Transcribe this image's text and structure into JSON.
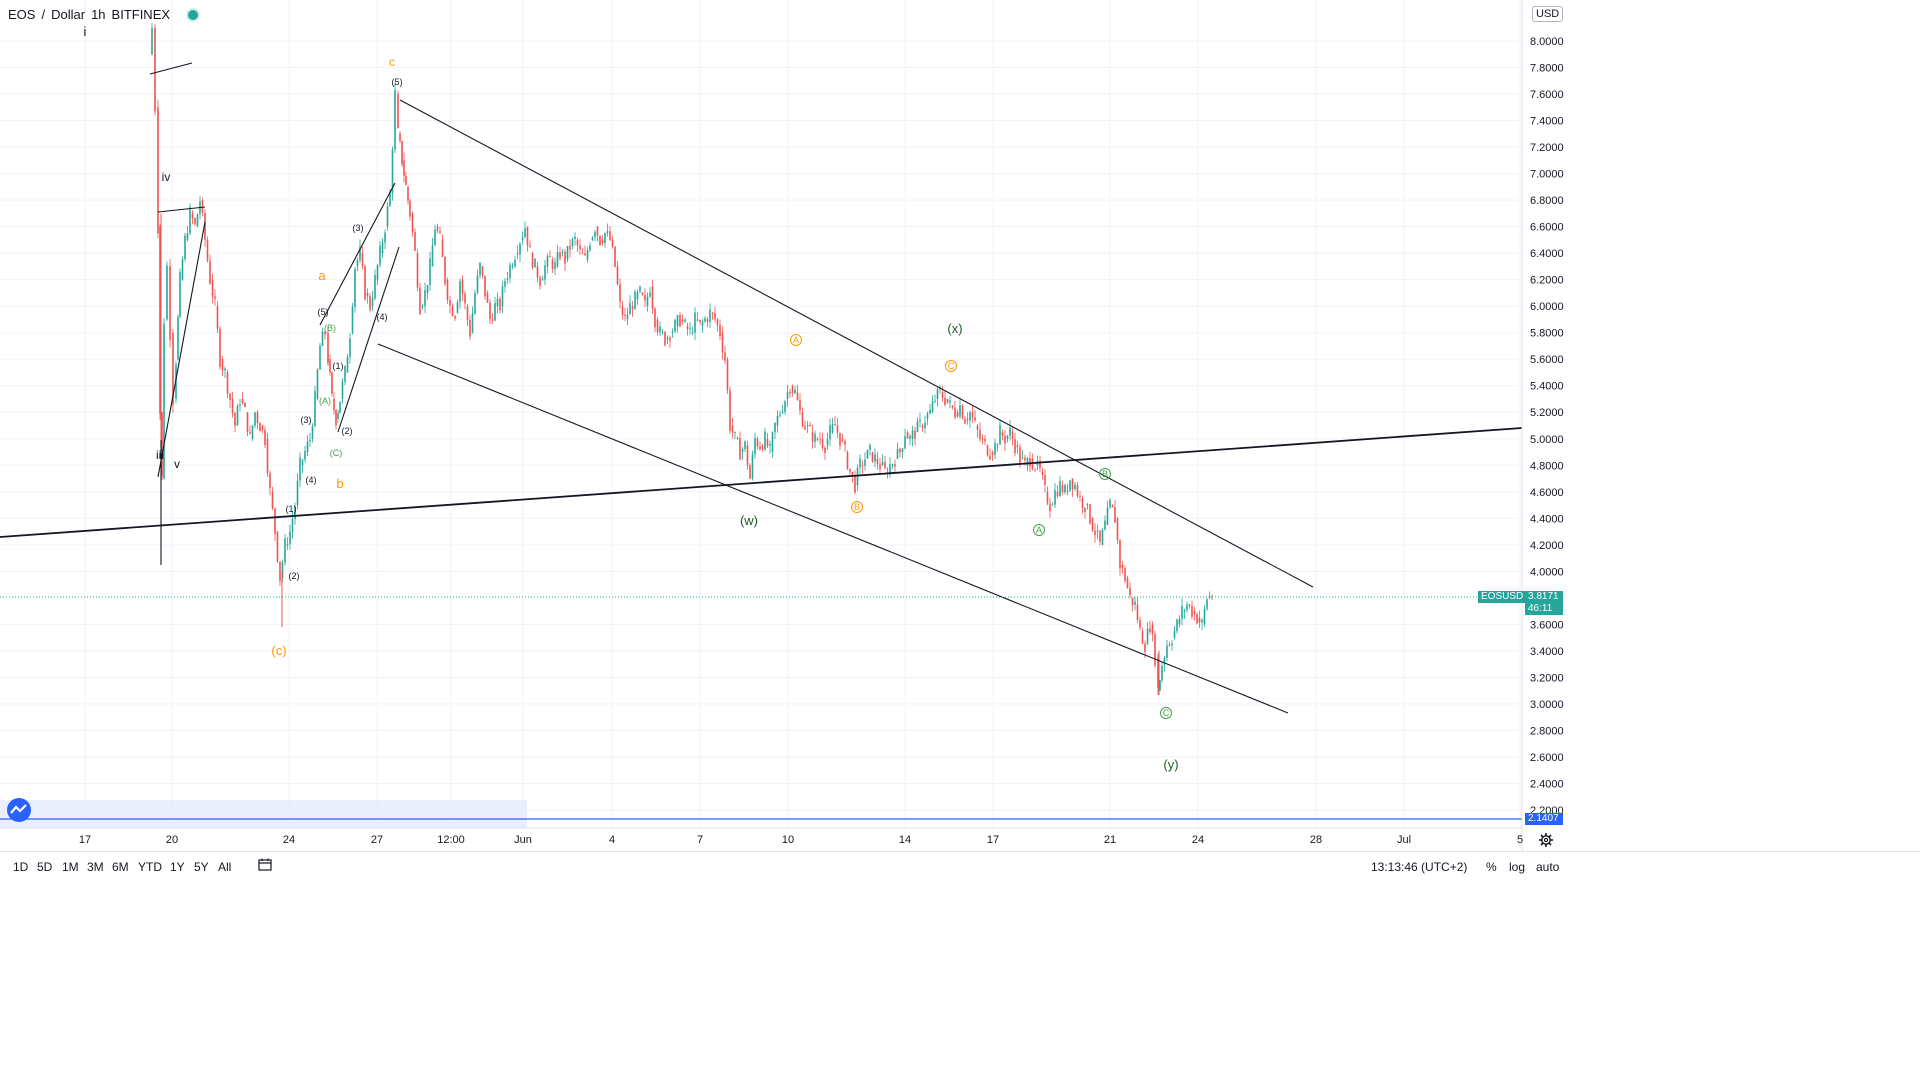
{
  "header": {
    "symbol": "EOS",
    "currency_name": "Dollar",
    "interval": "1h",
    "exchange": "BITFINEX",
    "currency_badge": "USD"
  },
  "chart_data": {
    "type": "candlestick",
    "title": "EOS / Dollar 1h BITFINEX",
    "y_axis_ticks": [
      "8.0000",
      "7.8000",
      "7.6000",
      "7.4000",
      "7.2000",
      "7.0000",
      "6.8000",
      "6.6000",
      "6.4000",
      "6.2000",
      "6.0000",
      "5.8000",
      "5.6000",
      "5.4000",
      "5.2000",
      "5.0000",
      "4.8000",
      "4.6000",
      "4.4000",
      "4.2000",
      "4.0000",
      "3.6000",
      "3.4000",
      "3.2000",
      "3.0000",
      "2.8000",
      "2.6000",
      "2.4000",
      "2.2000"
    ],
    "ylim": [
      2.1,
      8.15
    ],
    "x_axis_ticks": [
      "17",
      "20",
      "24",
      "27",
      "12:00",
      "Jun",
      "4",
      "7",
      "10",
      "14",
      "17",
      "21",
      "24",
      "28",
      "Jul",
      "5"
    ],
    "current_price": {
      "symbol": "EOSUSD",
      "value": "3.8171",
      "countdown": "46:11",
      "color": "#26a69a"
    },
    "marker_price": {
      "value": "2.1407",
      "color": "#2962ff"
    },
    "colors": {
      "up": "#26a69a",
      "down": "#ef5350",
      "trendline": "#131722"
    },
    "price_path": [
      [
        150,
        7.9
      ],
      [
        152,
        8.1
      ],
      [
        155,
        7.5
      ],
      [
        158,
        6.6
      ],
      [
        160,
        5.2
      ],
      [
        162,
        4.7
      ],
      [
        164,
        5.9
      ],
      [
        167,
        6.3
      ],
      [
        170,
        5.8
      ],
      [
        173,
        5.3
      ],
      [
        176,
        5.6
      ],
      [
        180,
        6.2
      ],
      [
        185,
        6.5
      ],
      [
        190,
        6.7
      ],
      [
        195,
        6.6
      ],
      [
        200,
        6.8
      ],
      [
        205,
        6.5
      ],
      [
        210,
        6.2
      ],
      [
        215,
        6.0
      ],
      [
        220,
        5.6
      ],
      [
        225,
        5.5
      ],
      [
        230,
        5.3
      ],
      [
        235,
        5.1
      ],
      [
        240,
        5.3
      ],
      [
        245,
        5.2
      ],
      [
        250,
        5.0
      ],
      [
        255,
        5.2
      ],
      [
        260,
        5.1
      ],
      [
        265,
        5.0
      ],
      [
        270,
        4.6
      ],
      [
        275,
        4.3
      ],
      [
        280,
        3.95
      ],
      [
        285,
        4.2
      ],
      [
        290,
        4.3
      ],
      [
        295,
        4.5
      ],
      [
        300,
        4.8
      ],
      [
        305,
        4.9
      ],
      [
        310,
        5.0
      ],
      [
        315,
        5.3
      ],
      [
        320,
        5.7
      ],
      [
        325,
        5.8
      ],
      [
        328,
        5.6
      ],
      [
        332,
        5.3
      ],
      [
        336,
        5.15
      ],
      [
        340,
        5.3
      ],
      [
        345,
        5.5
      ],
      [
        350,
        5.8
      ],
      [
        355,
        6.3
      ],
      [
        360,
        6.4
      ],
      [
        365,
        6.1
      ],
      [
        370,
        6.0
      ],
      [
        375,
        6.2
      ],
      [
        380,
        6.4
      ],
      [
        385,
        6.6
      ],
      [
        390,
        6.85
      ],
      [
        395,
        7.6
      ],
      [
        398,
        7.3
      ],
      [
        402,
        7.1
      ],
      [
        406,
        6.9
      ],
      [
        410,
        6.7
      ],
      [
        415,
        6.4
      ],
      [
        420,
        6.0
      ],
      [
        425,
        6.1
      ],
      [
        430,
        6.3
      ],
      [
        435,
        6.6
      ],
      [
        440,
        6.5
      ],
      [
        445,
        6.2
      ],
      [
        450,
        6.0
      ],
      [
        455,
        5.95
      ],
      [
        460,
        6.2
      ],
      [
        465,
        6.0
      ],
      [
        470,
        5.8
      ],
      [
        475,
        6.1
      ],
      [
        480,
        6.3
      ],
      [
        485,
        6.1
      ],
      [
        490,
        5.9
      ],
      [
        495,
        6.0
      ],
      [
        500,
        6.0
      ],
      [
        505,
        6.2
      ],
      [
        510,
        6.3
      ],
      [
        515,
        6.4
      ],
      [
        520,
        6.5
      ],
      [
        525,
        6.6
      ],
      [
        530,
        6.4
      ],
      [
        535,
        6.3
      ],
      [
        540,
        6.2
      ],
      [
        545,
        6.3
      ],
      [
        550,
        6.35
      ],
      [
        555,
        6.3
      ],
      [
        560,
        6.4
      ],
      [
        565,
        6.35
      ],
      [
        570,
        6.45
      ],
      [
        575,
        6.5
      ],
      [
        580,
        6.4
      ],
      [
        585,
        6.35
      ],
      [
        590,
        6.5
      ],
      [
        595,
        6.6
      ],
      [
        600,
        6.5
      ],
      [
        605,
        6.55
      ],
      [
        610,
        6.5
      ],
      [
        615,
        6.3
      ],
      [
        620,
        6.0
      ],
      [
        625,
        5.9
      ],
      [
        630,
        6.0
      ],
      [
        635,
        6.05
      ],
      [
        640,
        6.1
      ],
      [
        645,
        6.0
      ],
      [
        650,
        6.15
      ],
      [
        655,
        5.9
      ],
      [
        660,
        5.8
      ],
      [
        665,
        5.75
      ],
      [
        670,
        5.8
      ],
      [
        675,
        5.85
      ],
      [
        680,
        5.9
      ],
      [
        685,
        5.85
      ],
      [
        690,
        5.8
      ],
      [
        695,
        5.9
      ],
      [
        700,
        5.85
      ],
      [
        705,
        5.9
      ],
      [
        710,
        5.95
      ],
      [
        715,
        5.9
      ],
      [
        720,
        5.8
      ],
      [
        725,
        5.6
      ],
      [
        730,
        5.1
      ],
      [
        735,
        5.0
      ],
      [
        740,
        4.9
      ],
      [
        745,
        4.95
      ],
      [
        750,
        4.7
      ],
      [
        755,
        5.0
      ],
      [
        760,
        4.95
      ],
      [
        765,
        5.0
      ],
      [
        770,
        4.9
      ],
      [
        775,
        5.1
      ],
      [
        780,
        5.2
      ],
      [
        785,
        5.3
      ],
      [
        790,
        5.4
      ],
      [
        795,
        5.35
      ],
      [
        800,
        5.2
      ],
      [
        805,
        5.1
      ],
      [
        810,
        5.05
      ],
      [
        815,
        5.0
      ],
      [
        820,
        5.0
      ],
      [
        825,
        4.95
      ],
      [
        830,
        5.05
      ],
      [
        835,
        5.1
      ],
      [
        840,
        5.0
      ],
      [
        845,
        4.9
      ],
      [
        850,
        4.75
      ],
      [
        855,
        4.65
      ],
      [
        860,
        4.8
      ],
      [
        865,
        4.85
      ],
      [
        870,
        4.9
      ],
      [
        875,
        4.85
      ],
      [
        880,
        4.8
      ],
      [
        885,
        4.75
      ],
      [
        890,
        4.8
      ],
      [
        895,
        4.85
      ],
      [
        900,
        4.9
      ],
      [
        905,
        5.05
      ],
      [
        910,
        5.0
      ],
      [
        915,
        5.05
      ],
      [
        920,
        5.1
      ],
      [
        925,
        5.15
      ],
      [
        930,
        5.2
      ],
      [
        935,
        5.3
      ],
      [
        940,
        5.35
      ],
      [
        945,
        5.3
      ],
      [
        950,
        5.25
      ],
      [
        955,
        5.2
      ],
      [
        960,
        5.25
      ],
      [
        965,
        5.15
      ],
      [
        970,
        5.2
      ],
      [
        975,
        5.1
      ],
      [
        980,
        5.0
      ],
      [
        985,
        4.95
      ],
      [
        990,
        4.9
      ],
      [
        995,
        4.95
      ],
      [
        1000,
        5.05
      ],
      [
        1005,
        5.0
      ],
      [
        1010,
        5.05
      ],
      [
        1015,
        4.95
      ],
      [
        1020,
        4.85
      ],
      [
        1025,
        4.8
      ],
      [
        1030,
        4.85
      ],
      [
        1035,
        4.8
      ],
      [
        1040,
        4.75
      ],
      [
        1045,
        4.6
      ],
      [
        1050,
        4.5
      ],
      [
        1055,
        4.6
      ],
      [
        1060,
        4.65
      ],
      [
        1065,
        4.6
      ],
      [
        1070,
        4.7
      ],
      [
        1075,
        4.65
      ],
      [
        1080,
        4.55
      ],
      [
        1085,
        4.5
      ],
      [
        1090,
        4.4
      ],
      [
        1095,
        4.3
      ],
      [
        1100,
        4.2
      ],
      [
        1105,
        4.35
      ],
      [
        1110,
        4.5
      ],
      [
        1115,
        4.4
      ],
      [
        1120,
        4.05
      ],
      [
        1125,
        3.95
      ],
      [
        1130,
        3.8
      ],
      [
        1135,
        3.75
      ],
      [
        1140,
        3.55
      ],
      [
        1145,
        3.45
      ],
      [
        1150,
        3.6
      ],
      [
        1155,
        3.35
      ],
      [
        1158,
        3.1
      ],
      [
        1162,
        3.3
      ],
      [
        1167,
        3.45
      ],
      [
        1172,
        3.5
      ],
      [
        1177,
        3.6
      ],
      [
        1182,
        3.7
      ],
      [
        1187,
        3.75
      ],
      [
        1192,
        3.7
      ],
      [
        1197,
        3.65
      ],
      [
        1202,
        3.6
      ],
      [
        1207,
        3.8
      ],
      [
        1212,
        3.82
      ]
    ]
  },
  "annotations": [
    {
      "text": "i",
      "x": "17",
      "color": "#131722"
    },
    {
      "text": "iv",
      "color": "#131722"
    },
    {
      "text": "iii",
      "color": "#131722"
    },
    {
      "text": "v",
      "color": "#131722"
    },
    {
      "text": "c",
      "color": "#ff9800"
    },
    {
      "text": "(5)",
      "color": "#131722"
    },
    {
      "text": "(3)",
      "color": "#131722"
    },
    {
      "text": "a",
      "color": "#ff9800"
    },
    {
      "text": "(5)",
      "color": "#131722"
    },
    {
      "text": "(B)",
      "color": "#43a047"
    },
    {
      "text": "(1)",
      "color": "#131722"
    },
    {
      "text": "(3)",
      "color": "#131722"
    },
    {
      "text": "(A)",
      "color": "#43a047"
    },
    {
      "text": "(2)",
      "color": "#131722"
    },
    {
      "text": "(4)",
      "color": "#131722"
    },
    {
      "text": "(C)",
      "color": "#43a047"
    },
    {
      "text": "(4)",
      "color": "#131722"
    },
    {
      "text": "b",
      "color": "#ff9800"
    },
    {
      "text": "(1)",
      "color": "#131722"
    },
    {
      "text": "(2)",
      "color": "#131722"
    },
    {
      "text": "(c)",
      "color": "#ff9800"
    },
    {
      "text": "(w)",
      "color": "#1b5e20"
    },
    {
      "text": "(x)",
      "color": "#1b5e20"
    },
    {
      "text": "(y)",
      "color": "#1b5e20"
    },
    {
      "text": "A",
      "circled": true,
      "color": "#ff9800"
    },
    {
      "text": "B",
      "circled": true,
      "color": "#ff9800"
    },
    {
      "text": "C",
      "circled": true,
      "color": "#ff9800"
    },
    {
      "text": "A",
      "circled": true,
      "color": "#43a047"
    },
    {
      "text": "B",
      "circled": true,
      "color": "#43a047"
    },
    {
      "text": "C",
      "circled": true,
      "color": "#43a047"
    }
  ],
  "toolbar": {
    "ranges": [
      "1D",
      "5D",
      "1M",
      "3M",
      "6M",
      "YTD",
      "1Y",
      "5Y",
      "All"
    ],
    "clock": "13:13:46 (UTC+2)",
    "percent_label": "%",
    "log_label": "log",
    "auto_label": "auto"
  }
}
